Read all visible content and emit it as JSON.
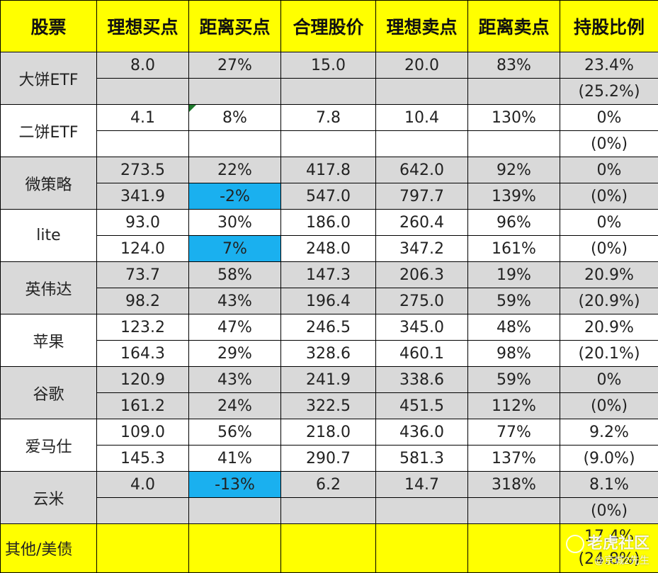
{
  "headers": [
    "股票",
    "理想买点",
    "距离买点",
    "合理股价",
    "理想卖点",
    "距离卖点",
    "持股比例"
  ],
  "rows": [
    {
      "name": "大饼ETF",
      "bg": "grey",
      "r1": {
        "buy": "8.0",
        "dist_buy": "27%",
        "fair": "15.0",
        "sell": "20.0",
        "dist_sell": "83%",
        "hold": "23.4%",
        "hold_color": "g"
      },
      "r2": {
        "buy": "",
        "dist_buy": "",
        "fair": "",
        "sell": "",
        "dist_sell": "",
        "hold": "(25.2%)",
        "hold_color": "g"
      }
    },
    {
      "name": "二饼ETF",
      "bg": "white",
      "r1": {
        "buy": "4.1",
        "dist_buy": "8%",
        "fair": "7.8",
        "sell": "10.4",
        "dist_sell": "130%",
        "hold": "0%",
        "hold_color": "k"
      },
      "r2": {
        "buy": "",
        "dist_buy": "",
        "fair": "",
        "sell": "",
        "dist_sell": "",
        "hold": "(0%)",
        "hold_color": "k"
      }
    },
    {
      "name": "微策略",
      "bg": "grey",
      "r1": {
        "buy": "273.5",
        "dist_buy": "22%",
        "fair": "417.8",
        "sell": "642.0",
        "dist_sell": "92%",
        "hold": "0%",
        "hold_color": "k"
      },
      "r2": {
        "buy": "341.9",
        "dist_buy": "-2%",
        "dist_buy_hl": true,
        "fair": "547.0",
        "sell": "797.7",
        "dist_sell": "139%",
        "hold": "(0%)",
        "hold_color": "k"
      }
    },
    {
      "name": "lite",
      "bg": "white",
      "r1": {
        "buy": "93.0",
        "dist_buy": "30%",
        "fair": "186.0",
        "sell": "260.4",
        "dist_sell": "96%",
        "hold": "0%",
        "hold_color": "k"
      },
      "r2": {
        "buy": "124.0",
        "dist_buy": "7%",
        "dist_buy_hl": true,
        "fair": "248.0",
        "sell": "347.2",
        "dist_sell": "161%",
        "hold": "(0%)",
        "hold_color": "k"
      }
    },
    {
      "name": "英伟达",
      "bg": "grey",
      "r1": {
        "buy": "73.7",
        "dist_buy": "58%",
        "fair": "147.3",
        "sell": "206.3",
        "dist_sell": "19%",
        "hold": "20.9%",
        "hold_color": "g"
      },
      "r2": {
        "buy": "98.2",
        "dist_buy": "43%",
        "fair": "196.4",
        "sell": "275.0",
        "dist_sell": "59%",
        "hold": "(20.9%)",
        "hold_color": "g"
      }
    },
    {
      "name": "苹果",
      "bg": "white",
      "r1": {
        "buy": "123.2",
        "dist_buy": "47%",
        "fair": "246.5",
        "sell": "345.0",
        "dist_sell": "48%",
        "hold": "20.9%",
        "hold_color": "r"
      },
      "r2": {
        "buy": "164.3",
        "dist_buy": "29%",
        "fair": "328.6",
        "sell": "460.1",
        "dist_sell": "98%",
        "hold": "(20.1%)",
        "hold_color": "r"
      }
    },
    {
      "name": "谷歌",
      "bg": "grey",
      "r1": {
        "buy": "120.9",
        "dist_buy": "43%",
        "fair": "241.9",
        "sell": "338.6",
        "dist_sell": "59%",
        "hold": "0%",
        "hold_color": "k"
      },
      "r2": {
        "buy": "161.2",
        "dist_buy": "24%",
        "fair": "322.5",
        "sell": "451.5",
        "dist_sell": "112%",
        "hold": "(0%)",
        "hold_color": "k"
      }
    },
    {
      "name": "爱马仕",
      "bg": "white",
      "r1": {
        "buy": "109.0",
        "dist_buy": "56%",
        "fair": "218.0",
        "sell": "436.0",
        "dist_sell": "77%",
        "hold": "9.2%",
        "hold_color": "r"
      },
      "r2": {
        "buy": "145.3",
        "dist_buy": "41%",
        "fair": "290.7",
        "sell": "581.3",
        "dist_sell": "137%",
        "hold": "(9.0%)",
        "hold_color": "r"
      }
    },
    {
      "name": "云米",
      "bg": "grey",
      "r1": {
        "buy": "4.0",
        "dist_buy": "-13%",
        "dist_buy_hl": true,
        "fair": "6.2",
        "sell": "14.7",
        "dist_sell": "318%",
        "hold": "8.1%",
        "hold_color": "r"
      },
      "r2": {
        "buy": "",
        "dist_buy": "",
        "fair": "",
        "sell": "",
        "dist_sell": "",
        "hold": "(0%)",
        "hold_color": "r"
      }
    }
  ],
  "footer": {
    "name": "其他/美债",
    "hold_r1": "17.4%",
    "hold_r2": "(24.8%)",
    "hold_color": "g"
  },
  "watermark": {
    "title": "老虎社区",
    "author": "@京城2先生"
  },
  "colors": {
    "header_bg": "#ffff00",
    "highlight": "#1ab0ef",
    "row_grey": "#d9d9d9",
    "green": "#2e9d4f",
    "red": "#e32b2b"
  }
}
